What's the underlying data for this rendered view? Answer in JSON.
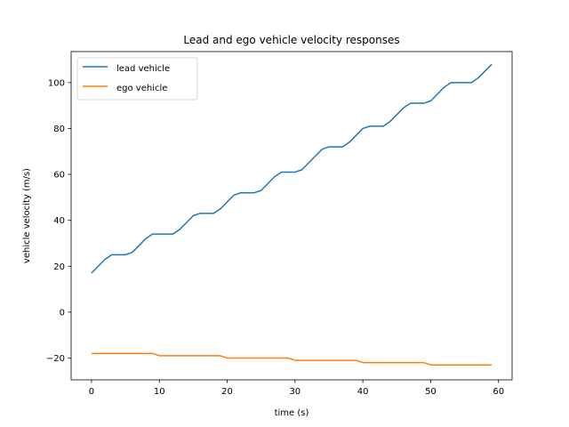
{
  "chart_data": {
    "type": "line",
    "title": "Lead and ego vehicle velocity responses",
    "xlabel": "time (s)",
    "ylabel": "vehicle velocity (m/s)",
    "xlim": [
      -3,
      62
    ],
    "ylim": [
      -29.5,
      113.5
    ],
    "xticks": [
      0,
      10,
      20,
      30,
      40,
      50,
      60
    ],
    "yticks": [
      -20,
      0,
      20,
      40,
      60,
      80,
      100
    ],
    "grid": false,
    "legend_position": "top-left",
    "x": [
      0,
      1,
      2,
      3,
      4,
      5,
      6,
      7,
      8,
      9,
      10,
      11,
      12,
      13,
      14,
      15,
      16,
      17,
      18,
      19,
      20,
      21,
      22,
      23,
      24,
      25,
      26,
      27,
      28,
      29,
      30,
      31,
      32,
      33,
      34,
      35,
      36,
      37,
      38,
      39,
      40,
      41,
      42,
      43,
      44,
      45,
      46,
      47,
      48,
      49,
      50,
      51,
      52,
      53,
      54,
      55,
      56,
      57,
      58,
      59
    ],
    "series": [
      {
        "name": "lead vehicle",
        "color": "#1f77b4",
        "values": [
          17,
          20,
          23,
          25,
          25,
          25,
          26,
          29,
          32,
          34,
          34,
          34,
          34,
          36,
          39,
          42,
          43,
          43,
          43,
          45,
          48,
          51,
          52,
          52,
          52,
          53,
          56,
          59,
          61,
          61,
          61,
          62,
          65,
          68,
          71,
          72,
          72,
          72,
          74,
          77,
          80,
          81,
          81,
          81,
          83,
          86,
          89,
          91,
          91,
          91,
          92,
          95,
          98,
          100,
          100,
          100,
          100,
          102,
          105,
          108
        ]
      },
      {
        "name": "ego vehicle",
        "color": "#ff7f0e",
        "values": [
          -18,
          -18,
          -18,
          -18,
          -18,
          -18,
          -18,
          -18,
          -18,
          -18,
          -19,
          -19,
          -19,
          -19,
          -19,
          -19,
          -19,
          -19,
          -19,
          -19,
          -20,
          -20,
          -20,
          -20,
          -20,
          -20,
          -20,
          -20,
          -20,
          -20,
          -21,
          -21,
          -21,
          -21,
          -21,
          -21,
          -21,
          -21,
          -21,
          -21,
          -22,
          -22,
          -22,
          -22,
          -22,
          -22,
          -22,
          -22,
          -22,
          -22,
          -23,
          -23,
          -23,
          -23,
          -23,
          -23,
          -23,
          -23,
          -23,
          -23
        ]
      }
    ]
  }
}
